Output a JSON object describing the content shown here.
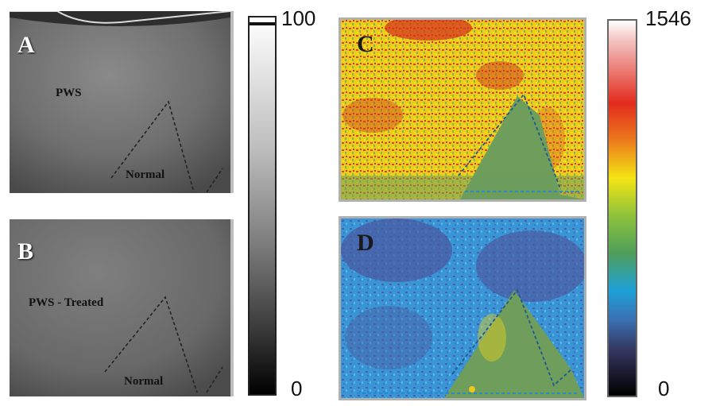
{
  "panels": {
    "A": {
      "letter": "A",
      "region_label": "PWS",
      "normal_label": "Normal"
    },
    "B": {
      "letter": "B",
      "region_label": "PWS - Treated",
      "normal_label": "Normal"
    },
    "C": {
      "letter": "C"
    },
    "D": {
      "letter": "D"
    }
  },
  "colorbar_gray": {
    "max_label": "100",
    "min_label": "0"
  },
  "colorbar_color": {
    "max_label": "1546",
    "min_label": "0"
  },
  "colors": {
    "gray_dark": "#2a2a2a",
    "gray_light": "#9a9a9a",
    "map_red": "#e23a1e",
    "map_yellow": "#f2e20e",
    "map_green": "#6b9a5a",
    "map_blue": "#2f9ad8",
    "map_navy": "#4c5a9c"
  }
}
